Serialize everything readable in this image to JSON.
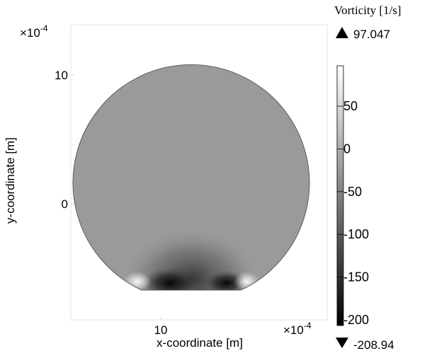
{
  "chart_data": {
    "type": "heatmap",
    "title": "Vorticity [1/s]",
    "xlabel": "x-coordinate  [m]",
    "ylabel": "y-coordinate [m]",
    "x_scale_label": "×10",
    "x_scale_exp": "-4",
    "y_scale_label": "×10",
    "y_scale_exp": "-4",
    "x_ticks": [
      {
        "value": 10,
        "label": "10"
      }
    ],
    "y_ticks": [
      {
        "value": 10,
        "label": "10"
      },
      {
        "value": 0,
        "label": "0"
      }
    ],
    "colorbar": {
      "max_label": "97.047",
      "min_label": "-208.94",
      "max_value": 97.047,
      "min_value": -208.94,
      "ticks": [
        {
          "value": 50,
          "label": "50"
        },
        {
          "value": 0,
          "label": "0"
        },
        {
          "value": -50,
          "label": "-50"
        },
        {
          "value": -100,
          "label": "-100"
        },
        {
          "value": -150,
          "label": "-150"
        },
        {
          "value": -200,
          "label": "-200"
        }
      ],
      "colormap": "grayscale"
    },
    "domain_shape": "truncated circle",
    "grid": false
  }
}
